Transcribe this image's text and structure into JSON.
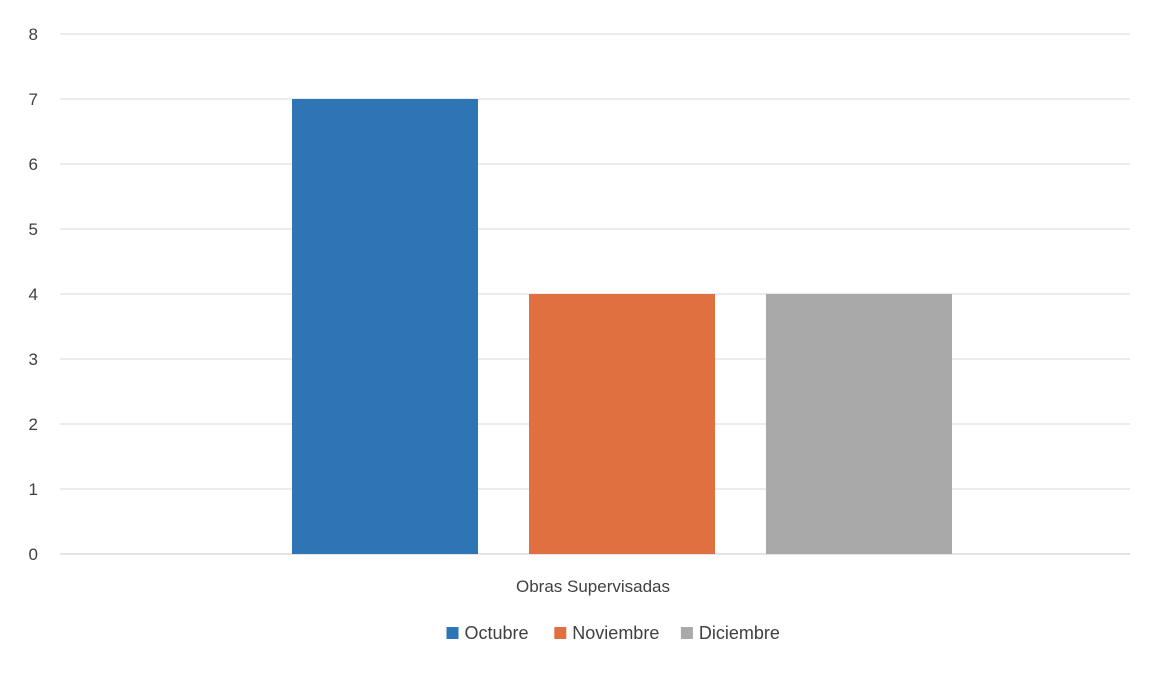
{
  "chart_data": {
    "type": "bar",
    "categories": [
      "Obras Supervisadas"
    ],
    "xlabel": "Obras Supervisadas",
    "ylabel": "",
    "ylim": [
      0,
      8
    ],
    "yticks": [
      "0",
      "1",
      "2",
      "3",
      "4",
      "5",
      "6",
      "7",
      "8"
    ],
    "grid": true,
    "legend_position": "bottom",
    "series": [
      {
        "name": "Octubre",
        "values": [
          7
        ],
        "color": "#2e75b6"
      },
      {
        "name": "Noviembre",
        "values": [
          4
        ],
        "color": "#e0703f"
      },
      {
        "name": "Diciembre",
        "values": [
          4
        ],
        "color": "#a9a9a9"
      }
    ]
  }
}
